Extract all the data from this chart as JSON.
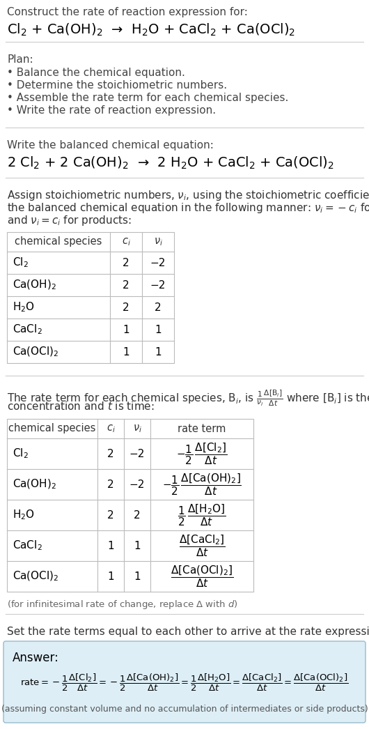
{
  "bg_color": "#ffffff",
  "text_color": "#000000",
  "gray_text": "#666666",
  "table_border": "#bbbbbb",
  "answer_bg": "#ddeef6",
  "answer_border": "#99bbcc",
  "section1_title": "Construct the rate of reaction expression for:",
  "section1_reaction": "Cl$_2$ + Ca(OH)$_2$  →  H$_2$O + CaCl$_2$ + Ca(OCl)$_2$",
  "plan_title": "Plan:",
  "plan_items": [
    "• Balance the chemical equation.",
    "• Determine the stoichiometric numbers.",
    "• Assemble the rate term for each chemical species.",
    "• Write the rate of reaction expression."
  ],
  "balanced_title": "Write the balanced chemical equation:",
  "balanced_eq": "2 Cl$_2$ + 2 Ca(OH)$_2$  →  2 H$_2$O + CaCl$_2$ + Ca(OCl)$_2$",
  "stoich_intro_lines": [
    "Assign stoichiometric numbers, $\\nu_i$, using the stoichiometric coefficients, $c_i$, from",
    "the balanced chemical equation in the following manner: $\\nu_i = -c_i$ for reactants",
    "and $\\nu_i = c_i$ for products:"
  ],
  "table1_headers": [
    "chemical species",
    "$c_i$",
    "$\\nu_i$"
  ],
  "table1_rows": [
    [
      "Cl$_2$",
      "2",
      "−2"
    ],
    [
      "Ca(OH)$_2$",
      "2",
      "−2"
    ],
    [
      "H$_2$O",
      "2",
      "2"
    ],
    [
      "CaCl$_2$",
      "1",
      "1"
    ],
    [
      "Ca(OCl)$_2$",
      "1",
      "1"
    ]
  ],
  "rate_intro_lines": [
    "The rate term for each chemical species, B$_i$, is $\\frac{1}{\\nu_i}\\frac{\\Delta[\\mathrm{B}_i]}{\\Delta t}$ where [B$_i$] is the amount",
    "concentration and $t$ is time:"
  ],
  "table2_headers": [
    "chemical species",
    "$c_i$",
    "$\\nu_i$",
    "rate term"
  ],
  "table2_rows": [
    [
      "Cl$_2$",
      "2",
      "−2",
      "$-\\dfrac{1}{2}\\,\\dfrac{\\Delta[\\mathrm{Cl_2}]}{\\Delta t}$"
    ],
    [
      "Ca(OH)$_2$",
      "2",
      "−2",
      "$-\\dfrac{1}{2}\\,\\dfrac{\\Delta[\\mathrm{Ca(OH)_2}]}{\\Delta t}$"
    ],
    [
      "H$_2$O",
      "2",
      "2",
      "$\\dfrac{1}{2}\\,\\dfrac{\\Delta[\\mathrm{H_2O}]}{\\Delta t}$"
    ],
    [
      "CaCl$_2$",
      "1",
      "1",
      "$\\dfrac{\\Delta[\\mathrm{CaCl_2}]}{\\Delta t}$"
    ],
    [
      "Ca(OCl)$_2$",
      "1",
      "1",
      "$\\dfrac{\\Delta[\\mathrm{Ca(OCl)_2}]}{\\Delta t}$"
    ]
  ],
  "infin_note": "(for infinitesimal rate of change, replace Δ with $d$)",
  "set_rate_title": "Set the rate terms equal to each other to arrive at the rate expression:",
  "answer_label": "Answer:",
  "answer_eq": "$\\mathrm{rate} = -\\dfrac{1}{2}\\dfrac{\\Delta[\\mathrm{Cl_2}]}{\\Delta t} = -\\dfrac{1}{2}\\dfrac{\\Delta[\\mathrm{Ca(OH)_2}]}{\\Delta t} = \\dfrac{1}{2}\\dfrac{\\Delta[\\mathrm{H_2O}]}{\\Delta t} = \\dfrac{\\Delta[\\mathrm{CaCl_2}]}{\\Delta t} = \\dfrac{\\Delta[\\mathrm{Ca(OCl)_2}]}{\\Delta t}$",
  "answer_note": "(assuming constant volume and no accumulation of intermediates or side products)"
}
